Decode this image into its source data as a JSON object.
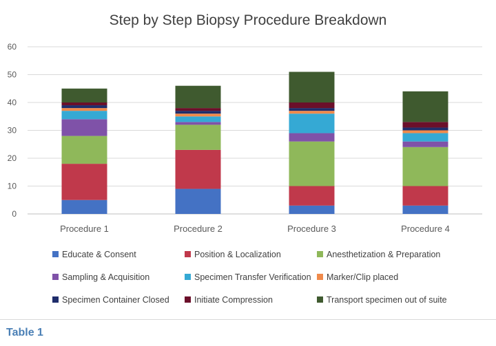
{
  "chart_data": {
    "type": "bar",
    "stacked": true,
    "title": "Step by Step Biopsy Procedure Breakdown",
    "categories": [
      "Procedure 1",
      "Procedure 2",
      "Procedure 3",
      "Procedure 4"
    ],
    "ylim": [
      0,
      60
    ],
    "yticks": [
      0,
      10,
      20,
      30,
      40,
      50,
      60
    ],
    "grid": true,
    "legend_position": "bottom",
    "series": [
      {
        "name": "Educate & Consent",
        "color": "#4472c4",
        "values": [
          5,
          9,
          3,
          3
        ]
      },
      {
        "name": "Position & Localization",
        "color": "#c0394b",
        "values": [
          13,
          14,
          7,
          7
        ]
      },
      {
        "name": "Anesthetization & Preparation",
        "color": "#8fb85a",
        "values": [
          10,
          9,
          16,
          14
        ]
      },
      {
        "name": "Sampling & Acquisition",
        "color": "#7f52a8",
        "values": [
          6,
          1,
          3,
          2
        ]
      },
      {
        "name": "Specimen Transfer Verification",
        "color": "#35a9d4",
        "values": [
          3,
          2,
          7,
          3
        ]
      },
      {
        "name": "Marker/Clip placed",
        "color": "#f08a4b",
        "values": [
          1,
          1,
          1,
          1
        ]
      },
      {
        "name": "Specimen Container Closed",
        "color": "#1f2d6b",
        "values": [
          1,
          1,
          1,
          1
        ]
      },
      {
        "name": "Initiate Compression",
        "color": "#6b0f2a",
        "values": [
          1,
          1,
          2,
          2
        ]
      },
      {
        "name": "Transport specimen out of suite",
        "color": "#3f5a2f",
        "values": [
          5,
          8,
          11,
          11
        ]
      }
    ]
  },
  "caption": {
    "label": "Table 1"
  }
}
